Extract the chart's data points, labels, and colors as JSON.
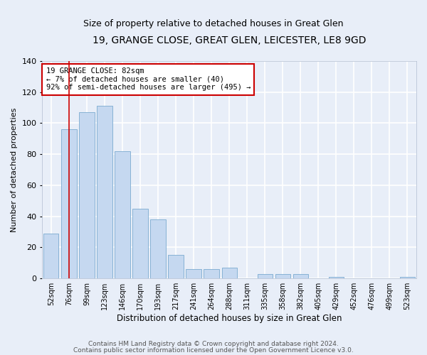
{
  "title1": "19, GRANGE CLOSE, GREAT GLEN, LEICESTER, LE8 9GD",
  "title2": "Size of property relative to detached houses in Great Glen",
  "xlabel": "Distribution of detached houses by size in Great Glen",
  "ylabel": "Number of detached properties",
  "categories": [
    "52sqm",
    "76sqm",
    "99sqm",
    "123sqm",
    "146sqm",
    "170sqm",
    "193sqm",
    "217sqm",
    "241sqm",
    "264sqm",
    "288sqm",
    "311sqm",
    "335sqm",
    "358sqm",
    "382sqm",
    "405sqm",
    "429sqm",
    "452sqm",
    "476sqm",
    "499sqm",
    "523sqm"
  ],
  "values": [
    29,
    96,
    107,
    111,
    82,
    45,
    38,
    15,
    6,
    6,
    7,
    0,
    3,
    3,
    3,
    0,
    1,
    0,
    0,
    0,
    1
  ],
  "bar_color": "#c5d8f0",
  "bar_edge_color": "#7aaad0",
  "vline_x": 1,
  "vline_color": "#cc0000",
  "ylim": [
    0,
    140
  ],
  "yticks": [
    0,
    20,
    40,
    60,
    80,
    100,
    120,
    140
  ],
  "annotation_text": "19 GRANGE CLOSE: 82sqm\n← 7% of detached houses are smaller (40)\n92% of semi-detached houses are larger (495) →",
  "annotation_box_color": "#ffffff",
  "annotation_box_edge": "#cc0000",
  "footer1": "Contains HM Land Registry data © Crown copyright and database right 2024.",
  "footer2": "Contains public sector information licensed under the Open Government Licence v3.0.",
  "background_color": "#e8eef8",
  "plot_bg_color": "#e8eef8",
  "grid_color": "#ffffff",
  "title1_fontsize": 10,
  "title2_fontsize": 9,
  "footer_fontsize": 6.5,
  "xlabel_fontsize": 8.5,
  "ylabel_fontsize": 8,
  "annotation_fontsize": 7.5
}
